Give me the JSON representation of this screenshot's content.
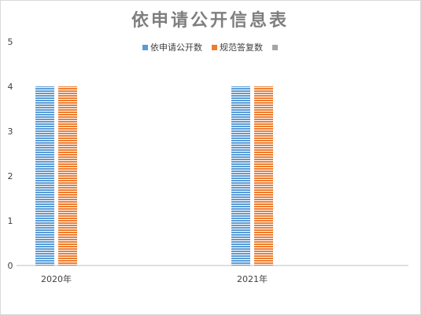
{
  "chart_data": {
    "type": "bar",
    "title": "依申请公开信息表",
    "categories": [
      "2020年",
      "2021年"
    ],
    "series": [
      {
        "name": "依申请公开数",
        "values": [
          4,
          4
        ],
        "color": "#5b9bd5"
      },
      {
        "name": "规范答复数",
        "values": [
          4,
          4
        ],
        "color": "#ed7d31"
      },
      {
        "name": "",
        "values": [
          0,
          0
        ],
        "color": "#a5a5a5"
      }
    ],
    "ylim": [
      0,
      5
    ],
    "yticks": [
      "0",
      "1",
      "2",
      "3",
      "4",
      "5"
    ],
    "grid": false,
    "legend_position": "top"
  }
}
